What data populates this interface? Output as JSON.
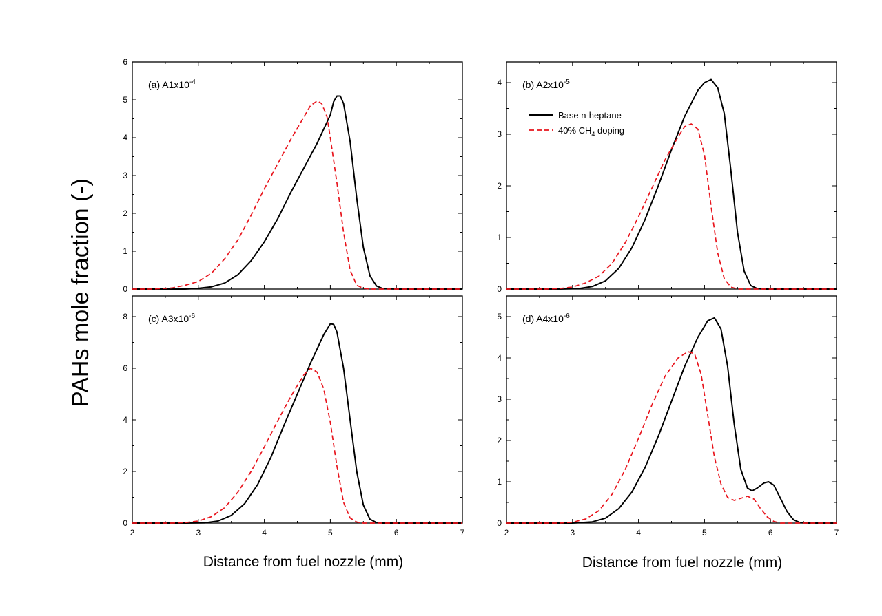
{
  "figure": {
    "ylabel": "PAHs mole fraction (-)",
    "xlabel": "Distance from fuel nozzle (mm)"
  },
  "legend": {
    "entries": [
      {
        "label": "Base n-heptane",
        "color": "#000000",
        "style": "solid"
      },
      {
        "label_pre": "40% CH",
        "label_sub": "4",
        "label_post": " doping",
        "color": "#e8141c",
        "style": "dashed"
      }
    ]
  },
  "chart_data": [
    {
      "type": "line",
      "id": "a",
      "label_pre": "(a) A1x10",
      "label_sup": "-4",
      "xlim": [
        2,
        7
      ],
      "ylim": [
        0,
        6
      ],
      "xticks": [
        2,
        3,
        4,
        5,
        6,
        7
      ],
      "yticks": [
        0,
        1,
        2,
        3,
        4,
        5,
        6
      ],
      "series": [
        {
          "name": "Base n-heptane",
          "color": "#000000",
          "dash": false,
          "points": [
            [
              2,
              0
            ],
            [
              2.5,
              0
            ],
            [
              2.8,
              0
            ],
            [
              3.0,
              0.02
            ],
            [
              3.2,
              0.06
            ],
            [
              3.4,
              0.16
            ],
            [
              3.6,
              0.38
            ],
            [
              3.8,
              0.75
            ],
            [
              4.0,
              1.25
            ],
            [
              4.2,
              1.85
            ],
            [
              4.4,
              2.55
            ],
            [
              4.6,
              3.2
            ],
            [
              4.8,
              3.85
            ],
            [
              5.0,
              4.6
            ],
            [
              5.05,
              4.95
            ],
            [
              5.1,
              5.1
            ],
            [
              5.15,
              5.1
            ],
            [
              5.2,
              4.9
            ],
            [
              5.3,
              3.9
            ],
            [
              5.4,
              2.4
            ],
            [
              5.5,
              1.1
            ],
            [
              5.6,
              0.35
            ],
            [
              5.7,
              0.08
            ],
            [
              5.8,
              0.01
            ],
            [
              6.0,
              0
            ],
            [
              7,
              0
            ]
          ]
        },
        {
          "name": "40% CH4 doping",
          "color": "#e8141c",
          "dash": true,
          "points": [
            [
              2,
              0
            ],
            [
              2.3,
              0
            ],
            [
              2.6,
              0.03
            ],
            [
              2.8,
              0.1
            ],
            [
              3.0,
              0.2
            ],
            [
              3.2,
              0.42
            ],
            [
              3.4,
              0.8
            ],
            [
              3.6,
              1.3
            ],
            [
              3.8,
              1.95
            ],
            [
              4.0,
              2.65
            ],
            [
              4.2,
              3.3
            ],
            [
              4.4,
              3.95
            ],
            [
              4.6,
              4.55
            ],
            [
              4.7,
              4.85
            ],
            [
              4.8,
              4.97
            ],
            [
              4.87,
              4.9
            ],
            [
              4.95,
              4.55
            ],
            [
              5.0,
              4.0
            ],
            [
              5.1,
              2.8
            ],
            [
              5.2,
              1.5
            ],
            [
              5.3,
              0.5
            ],
            [
              5.4,
              0.1
            ],
            [
              5.5,
              0.02
            ],
            [
              5.6,
              0
            ],
            [
              7,
              0
            ]
          ]
        }
      ]
    },
    {
      "type": "line",
      "id": "b",
      "label_pre": "(b) A2x10",
      "label_sup": "-5",
      "xlim": [
        2,
        7
      ],
      "ylim": [
        0,
        4.4
      ],
      "xticks": [
        2,
        3,
        4,
        5,
        6,
        7
      ],
      "yticks": [
        0,
        1,
        2,
        3,
        4
      ],
      "series": [
        {
          "name": "Base n-heptane",
          "color": "#000000",
          "dash": false,
          "points": [
            [
              2,
              0
            ],
            [
              2.8,
              0
            ],
            [
              3.1,
              0.01
            ],
            [
              3.3,
              0.05
            ],
            [
              3.5,
              0.16
            ],
            [
              3.7,
              0.4
            ],
            [
              3.9,
              0.8
            ],
            [
              4.1,
              1.35
            ],
            [
              4.3,
              2.0
            ],
            [
              4.5,
              2.7
            ],
            [
              4.7,
              3.35
            ],
            [
              4.9,
              3.85
            ],
            [
              5.0,
              4.0
            ],
            [
              5.1,
              4.06
            ],
            [
              5.2,
              3.9
            ],
            [
              5.3,
              3.4
            ],
            [
              5.4,
              2.3
            ],
            [
              5.5,
              1.1
            ],
            [
              5.6,
              0.35
            ],
            [
              5.7,
              0.07
            ],
            [
              5.8,
              0.01
            ],
            [
              5.9,
              0
            ],
            [
              7,
              0
            ]
          ]
        },
        {
          "name": "40% CH4 doping",
          "color": "#e8141c",
          "dash": true,
          "points": [
            [
              2,
              0
            ],
            [
              2.6,
              0
            ],
            [
              2.8,
              0.01
            ],
            [
              3.0,
              0.04
            ],
            [
              3.2,
              0.12
            ],
            [
              3.4,
              0.25
            ],
            [
              3.6,
              0.5
            ],
            [
              3.8,
              0.9
            ],
            [
              4.0,
              1.4
            ],
            [
              4.2,
              1.95
            ],
            [
              4.4,
              2.5
            ],
            [
              4.6,
              2.95
            ],
            [
              4.7,
              3.15
            ],
            [
              4.8,
              3.2
            ],
            [
              4.9,
              3.1
            ],
            [
              5.0,
              2.6
            ],
            [
              5.1,
              1.6
            ],
            [
              5.2,
              0.7
            ],
            [
              5.3,
              0.2
            ],
            [
              5.4,
              0.04
            ],
            [
              5.5,
              0
            ],
            [
              7,
              0
            ]
          ]
        }
      ]
    },
    {
      "type": "line",
      "id": "c",
      "label_pre": "(c) A3x10",
      "label_sup": "-6",
      "xlim": [
        2,
        7
      ],
      "ylim": [
        0,
        8.8
      ],
      "xticks": [
        2,
        3,
        4,
        5,
        6,
        7
      ],
      "yticks": [
        0,
        2,
        4,
        6,
        8
      ],
      "series": [
        {
          "name": "Base n-heptane",
          "color": "#000000",
          "dash": false,
          "points": [
            [
              2,
              0
            ],
            [
              2.8,
              0
            ],
            [
              3.1,
              0.01
            ],
            [
              3.3,
              0.08
            ],
            [
              3.5,
              0.3
            ],
            [
              3.7,
              0.75
            ],
            [
              3.9,
              1.5
            ],
            [
              4.1,
              2.55
            ],
            [
              4.3,
              3.8
            ],
            [
              4.5,
              5.0
            ],
            [
              4.7,
              6.2
            ],
            [
              4.9,
              7.3
            ],
            [
              5.0,
              7.72
            ],
            [
              5.05,
              7.7
            ],
            [
              5.1,
              7.4
            ],
            [
              5.2,
              6.0
            ],
            [
              5.3,
              4.0
            ],
            [
              5.4,
              2.0
            ],
            [
              5.5,
              0.7
            ],
            [
              5.6,
              0.15
            ],
            [
              5.7,
              0.02
            ],
            [
              5.8,
              0
            ],
            [
              7,
              0
            ]
          ]
        },
        {
          "name": "40% CH4 doping",
          "color": "#e8141c",
          "dash": true,
          "points": [
            [
              2,
              0
            ],
            [
              2.6,
              0
            ],
            [
              2.8,
              0.02
            ],
            [
              3.0,
              0.08
            ],
            [
              3.2,
              0.25
            ],
            [
              3.4,
              0.6
            ],
            [
              3.6,
              1.2
            ],
            [
              3.8,
              2.0
            ],
            [
              4.0,
              2.95
            ],
            [
              4.2,
              3.95
            ],
            [
              4.4,
              4.9
            ],
            [
              4.6,
              5.75
            ],
            [
              4.7,
              6.0
            ],
            [
              4.8,
              5.85
            ],
            [
              4.9,
              5.2
            ],
            [
              5.0,
              3.9
            ],
            [
              5.1,
              2.2
            ],
            [
              5.2,
              0.8
            ],
            [
              5.3,
              0.2
            ],
            [
              5.4,
              0.04
            ],
            [
              5.5,
              0
            ],
            [
              7,
              0
            ]
          ]
        }
      ]
    },
    {
      "type": "line",
      "id": "d",
      "label_pre": "(d) A4x10",
      "label_sup": "-6",
      "xlim": [
        2,
        7
      ],
      "ylim": [
        0,
        5.5
      ],
      "xticks": [
        2,
        3,
        4,
        5,
        6,
        7
      ],
      "yticks": [
        0,
        1,
        2,
        3,
        4,
        5
      ],
      "series": [
        {
          "name": "Base n-heptane",
          "color": "#000000",
          "dash": false,
          "points": [
            [
              2,
              0
            ],
            [
              3.0,
              0
            ],
            [
              3.3,
              0.03
            ],
            [
              3.5,
              0.12
            ],
            [
              3.7,
              0.35
            ],
            [
              3.9,
              0.75
            ],
            [
              4.1,
              1.35
            ],
            [
              4.3,
              2.1
            ],
            [
              4.5,
              2.95
            ],
            [
              4.7,
              3.8
            ],
            [
              4.9,
              4.5
            ],
            [
              5.05,
              4.9
            ],
            [
              5.15,
              4.97
            ],
            [
              5.25,
              4.7
            ],
            [
              5.35,
              3.8
            ],
            [
              5.45,
              2.4
            ],
            [
              5.55,
              1.3
            ],
            [
              5.65,
              0.85
            ],
            [
              5.72,
              0.78
            ],
            [
              5.8,
              0.85
            ],
            [
              5.9,
              0.97
            ],
            [
              5.97,
              1.0
            ],
            [
              6.05,
              0.92
            ],
            [
              6.15,
              0.6
            ],
            [
              6.25,
              0.28
            ],
            [
              6.35,
              0.08
            ],
            [
              6.45,
              0.01
            ],
            [
              6.55,
              0
            ],
            [
              7,
              0
            ]
          ]
        },
        {
          "name": "40% CH4 doping",
          "color": "#e8141c",
          "dash": true,
          "points": [
            [
              2,
              0
            ],
            [
              2.8,
              0
            ],
            [
              3.0,
              0.02
            ],
            [
              3.2,
              0.1
            ],
            [
              3.4,
              0.3
            ],
            [
              3.6,
              0.7
            ],
            [
              3.8,
              1.3
            ],
            [
              4.0,
              2.05
            ],
            [
              4.2,
              2.85
            ],
            [
              4.4,
              3.55
            ],
            [
              4.6,
              4.0
            ],
            [
              4.75,
              4.15
            ],
            [
              4.85,
              4.1
            ],
            [
              4.95,
              3.6
            ],
            [
              5.05,
              2.6
            ],
            [
              5.15,
              1.6
            ],
            [
              5.25,
              0.95
            ],
            [
              5.35,
              0.62
            ],
            [
              5.45,
              0.55
            ],
            [
              5.55,
              0.6
            ],
            [
              5.65,
              0.65
            ],
            [
              5.75,
              0.58
            ],
            [
              5.85,
              0.35
            ],
            [
              5.95,
              0.15
            ],
            [
              6.05,
              0.04
            ],
            [
              6.15,
              0
            ],
            [
              7,
              0
            ]
          ]
        }
      ]
    }
  ]
}
